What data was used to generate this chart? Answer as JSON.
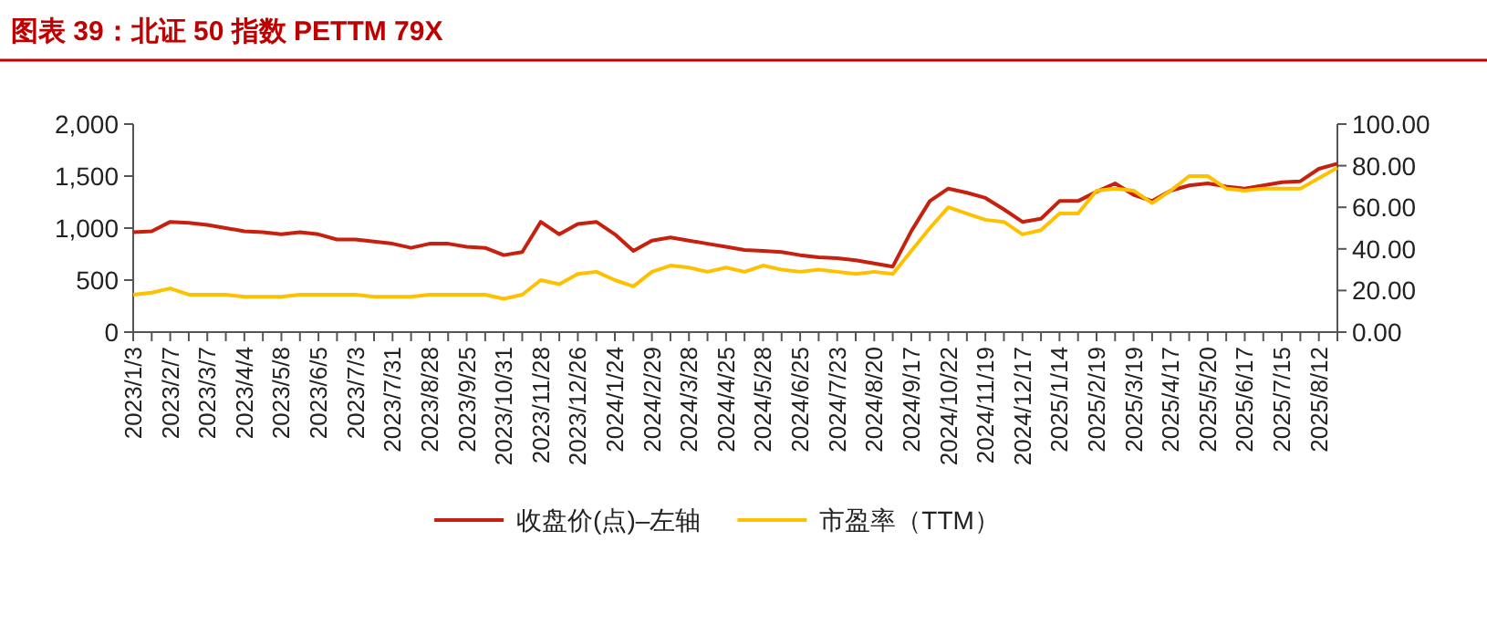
{
  "chart_data": {
    "type": "line",
    "title": "图表 39：北证 50 指数 PETTM 79X",
    "categories": [
      "2023/1/3",
      null,
      "2023/2/7",
      null,
      "2023/3/7",
      null,
      "2023/4/4",
      null,
      "2023/5/8",
      null,
      "2023/6/5",
      null,
      "2023/7/3",
      null,
      "2023/7/31",
      null,
      "2023/8/28",
      null,
      "2023/9/25",
      null,
      "2023/10/31",
      null,
      "2023/11/28",
      null,
      "2023/12/26",
      null,
      "2024/1/24",
      null,
      "2024/2/29",
      null,
      "2024/3/28",
      null,
      "2024/4/25",
      null,
      "2024/5/28",
      null,
      "2024/6/25",
      null,
      "2024/7/23",
      null,
      "2024/8/20",
      null,
      "2024/9/17",
      null,
      "2024/10/22",
      null,
      "2024/11/19",
      null,
      "2024/12/17",
      null,
      "2025/1/14",
      null,
      "2025/2/19",
      null,
      "2025/3/19",
      null,
      "2025/4/17",
      null,
      "2025/5/20",
      null,
      "2025/6/17",
      null,
      "2025/7/15",
      null,
      "2025/8/12",
      null
    ],
    "series": [
      {
        "name": "收盘价(点)–左轴",
        "color": "#c8200e",
        "values": [
          960,
          970,
          1060,
          1050,
          1030,
          1000,
          970,
          960,
          940,
          960,
          940,
          890,
          890,
          870,
          850,
          810,
          850,
          850,
          820,
          810,
          740,
          770,
          1060,
          940,
          1040,
          1060,
          940,
          780,
          880,
          910,
          880,
          850,
          820,
          790,
          780,
          770,
          740,
          720,
          710,
          690,
          660,
          630,
          970,
          1260,
          1380,
          1340,
          1290,
          1180,
          1060,
          1090,
          1260,
          1260,
          1350,
          1430,
          1320,
          1260,
          1360,
          1410,
          1430,
          1400,
          1380,
          1410,
          1440,
          1450,
          1570,
          1620
        ]
      },
      {
        "name": "市盈率（TTM）",
        "color": "#ffc000",
        "axis": "y2",
        "values": [
          18,
          19,
          21,
          18,
          18,
          18,
          17,
          17,
          17,
          18,
          18,
          18,
          18,
          17,
          17,
          17,
          18,
          18,
          18,
          18,
          16,
          18,
          25,
          23,
          28,
          29,
          25,
          22,
          29,
          32,
          31,
          29,
          31,
          29,
          32,
          30,
          29,
          30,
          29,
          28,
          29,
          28,
          39,
          50,
          60,
          57,
          54,
          53,
          47,
          49,
          57,
          57,
          68,
          69,
          68,
          62,
          68,
          75,
          75,
          69,
          68,
          69,
          69,
          69,
          74,
          79
        ]
      }
    ],
    "ylim": [
      0,
      2000
    ],
    "yticks": [
      0,
      {
        "value": 500,
        "label": "500"
      },
      {
        "value": 1000,
        "label": "1,000"
      },
      {
        "value": 1500,
        "label": "1,500"
      },
      {
        "value": 2000,
        "label": "2,000"
      }
    ],
    "y2lim": [
      0,
      100
    ],
    "y2ticks": [
      {
        "value": 0,
        "label": "0.00"
      },
      {
        "value": 20,
        "label": "20.00"
      },
      {
        "value": 40,
        "label": "40.00"
      },
      {
        "value": 60,
        "label": "60.00"
      },
      {
        "value": 80,
        "label": "80.00"
      },
      {
        "value": 100,
        "label": "100.00"
      }
    ],
    "grid": false,
    "legend": "bottom",
    "line_style": "solid",
    "marker": "none"
  }
}
